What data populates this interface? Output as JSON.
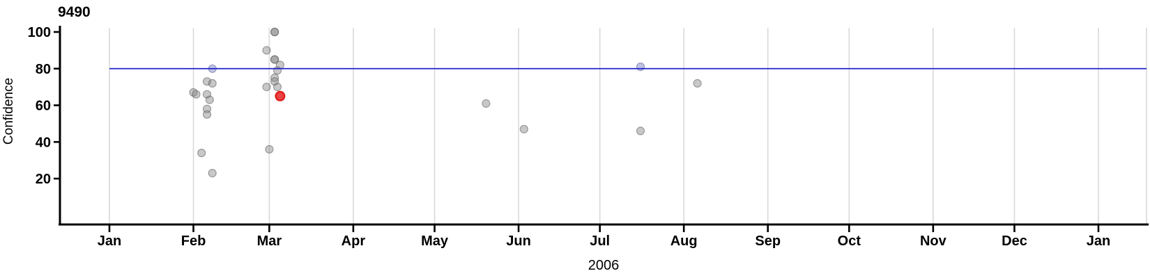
{
  "title": "9490",
  "axes": {
    "y_label": "Confidence",
    "x_label": "2006",
    "y_ticks": [
      "100",
      "80",
      "60",
      "40",
      "20"
    ],
    "x_ticks": [
      "Jan",
      "Feb",
      "Mar",
      "Apr",
      "May",
      "Jun",
      "Jul",
      "Aug",
      "Sep",
      "Oct",
      "Nov",
      "Dec",
      "Jan"
    ]
  },
  "colors": {
    "reference_line": "#2222cc",
    "gridline": "#d9d9d9",
    "axis": "#000000",
    "point_gray_fill": "rgba(134,134,134,0.45)",
    "point_gray_stroke": "rgba(95,95,95,0.55)",
    "point_blue_fill": "rgba(185,190,224,0.9)",
    "point_blue_stroke": "rgba(140,146,190,0.9)",
    "point_red_fill": "#ea4545",
    "point_red_stroke": "#e02020"
  },
  "chart_data": {
    "type": "scatter",
    "title": "9490",
    "xlabel": "2006",
    "ylabel": "Confidence",
    "x_axis_range": "Jan 2006 to Jan 2007 (month ticks)",
    "y_tick_values": [
      100,
      80,
      60,
      40,
      20
    ],
    "grid": "vertical month gridlines only",
    "reference_line_y": 80,
    "points": [
      {
        "date": "Feb 1",
        "confidence": 67,
        "color": "gray"
      },
      {
        "date": "Feb 2",
        "confidence": 66,
        "color": "gray"
      },
      {
        "date": "Feb 4",
        "confidence": 34,
        "color": "gray"
      },
      {
        "date": "Feb 6",
        "confidence": 73,
        "color": "gray"
      },
      {
        "date": "Feb 6",
        "confidence": 66,
        "color": "gray"
      },
      {
        "date": "Feb 6",
        "confidence": 58,
        "color": "gray"
      },
      {
        "date": "Feb 6",
        "confidence": 55,
        "color": "gray"
      },
      {
        "date": "Feb 7",
        "confidence": 63,
        "color": "gray"
      },
      {
        "date": "Feb 8",
        "confidence": 80,
        "color": "blue"
      },
      {
        "date": "Feb 8",
        "confidence": 72,
        "color": "gray"
      },
      {
        "date": "Feb 8",
        "confidence": 23,
        "color": "gray"
      },
      {
        "date": "Feb 28",
        "confidence": 90,
        "color": "gray"
      },
      {
        "date": "Feb 28",
        "confidence": 70,
        "color": "gray"
      },
      {
        "date": "Mar 1",
        "confidence": 36,
        "color": "gray"
      },
      {
        "date": "Mar 3",
        "confidence": 100,
        "color": "gray"
      },
      {
        "date": "Mar 3",
        "confidence": 100,
        "color": "gray"
      },
      {
        "date": "Mar 3",
        "confidence": 85,
        "color": "gray"
      },
      {
        "date": "Mar 3",
        "confidence": 85,
        "color": "gray"
      },
      {
        "date": "Mar 3",
        "confidence": 75,
        "color": "gray"
      },
      {
        "date": "Mar 3",
        "confidence": 73,
        "color": "gray"
      },
      {
        "date": "Mar 4",
        "confidence": 79,
        "color": "gray"
      },
      {
        "date": "Mar 4",
        "confidence": 70,
        "color": "gray"
      },
      {
        "date": "Mar 5",
        "confidence": 82,
        "color": "gray"
      },
      {
        "date": "Mar 5",
        "confidence": 65,
        "color": "red"
      },
      {
        "date": "May 20",
        "confidence": 61,
        "color": "gray"
      },
      {
        "date": "Jun 3",
        "confidence": 47,
        "color": "gray"
      },
      {
        "date": "Jul 16",
        "confidence": 81,
        "color": "blue"
      },
      {
        "date": "Jul 16",
        "confidence": 46,
        "color": "gray"
      },
      {
        "date": "Aug 6",
        "confidence": 72,
        "color": "gray"
      }
    ]
  }
}
